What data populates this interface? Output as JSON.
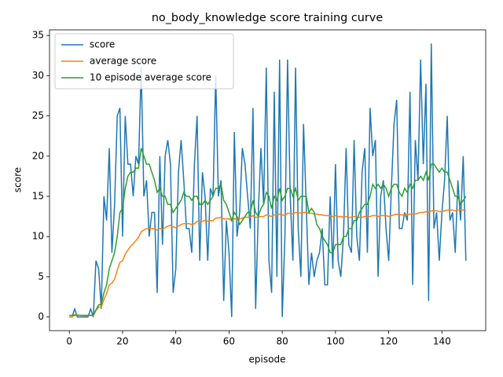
{
  "chart_data": {
    "type": "line",
    "title": "no_body_knowledge score training curve",
    "x_label": "episode",
    "y_label": "score",
    "x": [
      0,
      1,
      2,
      3,
      4,
      5,
      6,
      7,
      8,
      9,
      10,
      11,
      12,
      13,
      14,
      15,
      16,
      17,
      18,
      19,
      20,
      21,
      22,
      23,
      24,
      25,
      26,
      27,
      28,
      29,
      30,
      31,
      32,
      33,
      34,
      35,
      36,
      37,
      38,
      39,
      40,
      41,
      42,
      43,
      44,
      45,
      46,
      47,
      48,
      49,
      50,
      51,
      52,
      53,
      54,
      55,
      56,
      57,
      58,
      59,
      60,
      61,
      62,
      63,
      64,
      65,
      66,
      67,
      68,
      69,
      70,
      71,
      72,
      73,
      74,
      75,
      76,
      77,
      78,
      79,
      80,
      81,
      82,
      83,
      84,
      85,
      86,
      87,
      88,
      89,
      90,
      91,
      92,
      93,
      94,
      95,
      96,
      97,
      98,
      99,
      100,
      101,
      102,
      103,
      104,
      105,
      106,
      107,
      108,
      109,
      110,
      111,
      112,
      113,
      114,
      115,
      116,
      117,
      118,
      119,
      120,
      121,
      122,
      123,
      124,
      125,
      126,
      127,
      128,
      129,
      130,
      131,
      132,
      133,
      134,
      135,
      136,
      137,
      138,
      139,
      140,
      141,
      142,
      143,
      144,
      145,
      146,
      147,
      148,
      149
    ],
    "series": [
      {
        "name": "score",
        "color": "#1f77b4",
        "values": [
          0,
          0,
          1,
          0,
          0,
          0,
          0,
          0,
          1,
          0,
          7,
          6,
          1,
          15,
          12,
          21,
          8,
          14,
          25,
          26,
          10,
          25,
          19,
          19,
          15,
          20,
          19,
          31,
          15,
          17,
          10,
          13,
          13,
          3,
          20,
          9,
          20,
          22,
          19,
          3,
          6,
          18,
          22,
          17,
          11,
          11,
          8,
          19,
          25,
          7,
          18,
          15,
          7,
          16,
          15,
          30,
          15,
          17,
          2,
          12,
          8,
          0,
          23,
          10,
          13,
          21,
          19,
          15,
          11,
          26,
          1,
          13,
          21,
          14,
          31,
          7,
          3,
          28,
          5,
          32,
          0,
          10,
          32,
          15,
          7,
          31,
          11,
          5,
          24,
          14,
          4,
          8,
          5,
          7,
          8,
          11,
          4,
          4,
          15,
          6,
          19,
          7,
          5,
          10,
          21,
          9,
          8,
          22,
          10,
          7,
          18,
          21,
          8,
          26,
          20,
          22,
          5,
          15,
          17,
          11,
          7,
          16,
          24,
          27,
          11,
          11,
          13,
          12,
          28,
          4,
          22,
          17,
          32,
          19,
          29,
          2,
          34,
          11,
          13,
          7,
          13,
          17,
          25,
          12,
          13,
          8,
          17,
          12,
          20,
          7
        ]
      },
      {
        "name": "average score",
        "color": "#ff7f0e",
        "values": [
          0,
          0,
          0.3,
          0.25,
          0.2,
          0.17,
          0.14,
          0.13,
          0.22,
          0.2,
          0.8,
          1.25,
          1.2,
          2.2,
          2.9,
          4.0,
          4.2,
          4.7,
          5.8,
          6.8,
          7,
          7.8,
          8.3,
          8.8,
          9.1,
          9.5,
          9.9,
          10.6,
          10.8,
          11.0,
          11,
          11,
          11,
          10.8,
          11,
          10.9,
          11.1,
          11.3,
          11.4,
          11.2,
          11.1,
          11.3,
          11.5,
          11.6,
          11.6,
          11.6,
          11.5,
          11.6,
          11.9,
          11.8,
          11.9,
          12,
          11.9,
          12,
          12,
          12.3,
          12.3,
          12.4,
          12.2,
          12.2,
          12.2,
          12,
          12.2,
          12.2,
          12.2,
          12.3,
          12.4,
          12.4,
          12.4,
          12.6,
          12.4,
          12.4,
          12.5,
          12.5,
          12.7,
          12.6,
          12.5,
          12.7,
          12.6,
          12.8,
          12.7,
          12.6,
          12.9,
          12.9,
          12.8,
          13,
          13,
          12.9,
          13,
          13,
          12.9,
          12.9,
          12.8,
          12.8,
          12.7,
          12.7,
          12.6,
          12.6,
          12.6,
          12.5,
          12.6,
          12.5,
          12.5,
          12.4,
          12.5,
          12.4,
          12.4,
          12.5,
          12.4,
          12.4,
          12.4,
          12.5,
          12.4,
          12.5,
          12.6,
          12.6,
          12.5,
          12.6,
          12.6,
          12.6,
          12.5,
          12.6,
          12.7,
          12.8,
          12.7,
          12.7,
          12.7,
          12.7,
          12.8,
          12.8,
          12.8,
          12.9,
          13,
          13,
          13.1,
          13,
          13.2,
          13.2,
          13.2,
          13.1,
          13.1,
          13.2,
          13.3,
          13.3,
          13.3,
          13.2,
          13.3,
          13.3,
          13.3,
          13.2
        ]
      },
      {
        "name": "10 episode average score",
        "color": "#2ca02c",
        "values": [
          0.2,
          0.2,
          0.2,
          0.2,
          0.2,
          0.2,
          0.2,
          0.2,
          0.2,
          0.2,
          0.9,
          1.5,
          1.6,
          3,
          4,
          6,
          7,
          8,
          10,
          13,
          13.5,
          16,
          17.5,
          18,
          18,
          18.5,
          18.5,
          21,
          20,
          19,
          19,
          18,
          17,
          15.5,
          16,
          15,
          15,
          14,
          14,
          13,
          13.5,
          14,
          14.5,
          15.5,
          15,
          15,
          14.5,
          15,
          15,
          14,
          14,
          14.5,
          14,
          14.5,
          15,
          16,
          16,
          16.5,
          14.5,
          14,
          13,
          12,
          13,
          12.5,
          11.5,
          12,
          12.5,
          13,
          13,
          14.5,
          13,
          12.5,
          13.5,
          14,
          15.5,
          15,
          13.5,
          15,
          14.5,
          16,
          14.5,
          15,
          16,
          16,
          15,
          16,
          14.5,
          15,
          15,
          15,
          13,
          13.5,
          13,
          11.5,
          11,
          10,
          9.5,
          9,
          8,
          8,
          9,
          9,
          9,
          10,
          10,
          11,
          11,
          12,
          12,
          13,
          13.5,
          14,
          14,
          15,
          16.5,
          16,
          16.5,
          16,
          16.5,
          16,
          15,
          16,
          16.5,
          16.5,
          15.5,
          15,
          16,
          15.5,
          16.5,
          16,
          17,
          17,
          17.5,
          17,
          18,
          17,
          19,
          19,
          18.5,
          18,
          18.5,
          18,
          18,
          17,
          16,
          15,
          15,
          14,
          14.5,
          15
        ]
      }
    ],
    "xlim": [
      -7.45,
      156.45
    ],
    "ylim": [
      -1.7,
      35.7
    ],
    "xticks": [
      0,
      20,
      40,
      60,
      80,
      100,
      120,
      140
    ],
    "yticks": [
      0,
      5,
      10,
      15,
      20,
      25,
      30,
      35
    ],
    "legend": "upper left"
  }
}
